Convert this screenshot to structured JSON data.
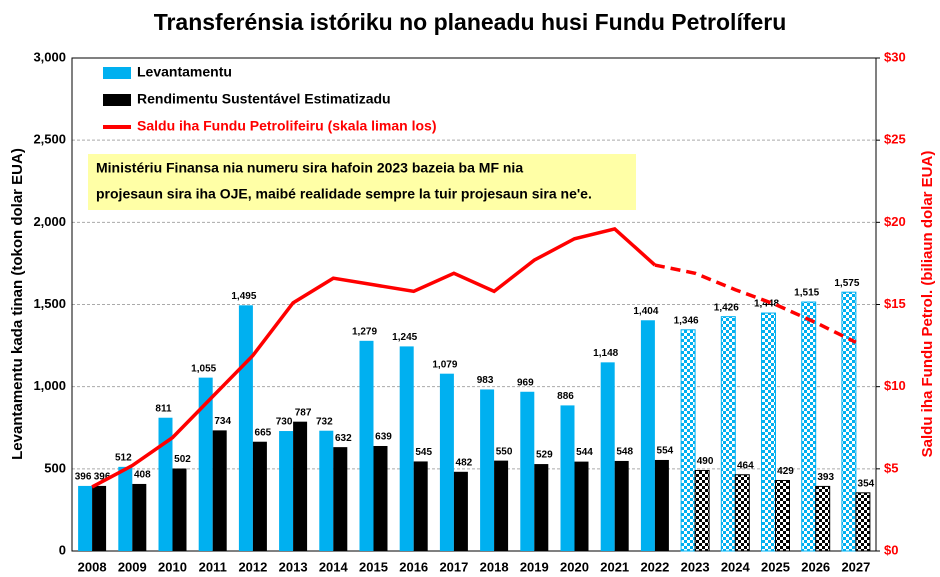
{
  "chart_data": {
    "type": "bar",
    "title": "Transferénsia istóriku no planeadu husi Fundu Petrolíferu",
    "y_label": "Levantamentu kada tinan (tokon dolar EUA)",
    "y2_label": "Saldu iha Fundu Petrol. (biliaun dolar EUA)",
    "annotation": [
      "Ministériu Finansa nia numeru sira hafoin 2023 bazeia ba MF nia",
      "projesaun sira iha OJE, maibé realidade sempre la tuir projesaun sira ne'e."
    ],
    "categories": [
      "2008",
      "2009",
      "2010",
      "2011",
      "2012",
      "2013",
      "2014",
      "2015",
      "2016",
      "2017",
      "2018",
      "2019",
      "2020",
      "2021",
      "2022",
      "2023",
      "2024",
      "2025",
      "2026",
      "2027"
    ],
    "projected_from": "2023",
    "ylim": [
      0,
      3000
    ],
    "yticks": [
      0,
      500,
      {
        "value": 1000,
        "label": "1,000"
      },
      {
        "value": 1500,
        "label": "1,500"
      },
      {
        "value": 2000,
        "label": "2,000"
      },
      {
        "value": 2500,
        "label": "2,500"
      },
      {
        "value": 3000,
        "label": "3,000"
      }
    ],
    "y2lim": [
      0,
      30
    ],
    "y2ticks": [
      {
        "value": 0,
        "label": "$0"
      },
      {
        "value": 5,
        "label": "$5"
      },
      {
        "value": 10,
        "label": "$10"
      },
      {
        "value": 15,
        "label": "$15"
      },
      {
        "value": 20,
        "label": "$20"
      },
      {
        "value": 25,
        "label": "$25"
      },
      {
        "value": 30,
        "label": "$30"
      }
    ],
    "grid": true,
    "series": [
      {
        "name": "Levantamentu",
        "color": "#00b0f0",
        "kind": "bar",
        "values": [
          396,
          512,
          811,
          1055,
          1495,
          730,
          732,
          1279,
          1245,
          1079,
          983,
          969,
          886,
          1148,
          1404,
          1346,
          1426,
          1448,
          1515,
          1575
        ],
        "value_labels": [
          "396",
          "512",
          "811",
          "1,055",
          "1,495",
          "730",
          "732",
          "1,279",
          "1,245",
          "1,079",
          "983",
          "969",
          "886",
          "1,148",
          "1,404",
          "1,346",
          "1,426",
          "1,448",
          "1,515",
          "1,575"
        ]
      },
      {
        "name": "Rendimentu Sustentável Estimatizadu",
        "color": "#000000",
        "kind": "bar",
        "values": [
          396,
          408,
          502,
          734,
          665,
          787,
          632,
          639,
          545,
          482,
          550,
          529,
          544,
          548,
          554,
          490,
          464,
          429,
          393,
          354
        ]
      },
      {
        "name": "Saldu iha Fundu Petrolifeiru (skala liman los)",
        "color": "#ff0000",
        "kind": "line",
        "axis": "y2",
        "values": [
          3.9,
          5.2,
          6.9,
          9.4,
          11.9,
          15.1,
          16.6,
          16.2,
          15.8,
          16.9,
          15.8,
          17.7,
          19.0,
          19.6,
          17.4,
          16.9,
          15.9,
          15.0,
          13.9,
          12.7
        ]
      }
    ]
  }
}
